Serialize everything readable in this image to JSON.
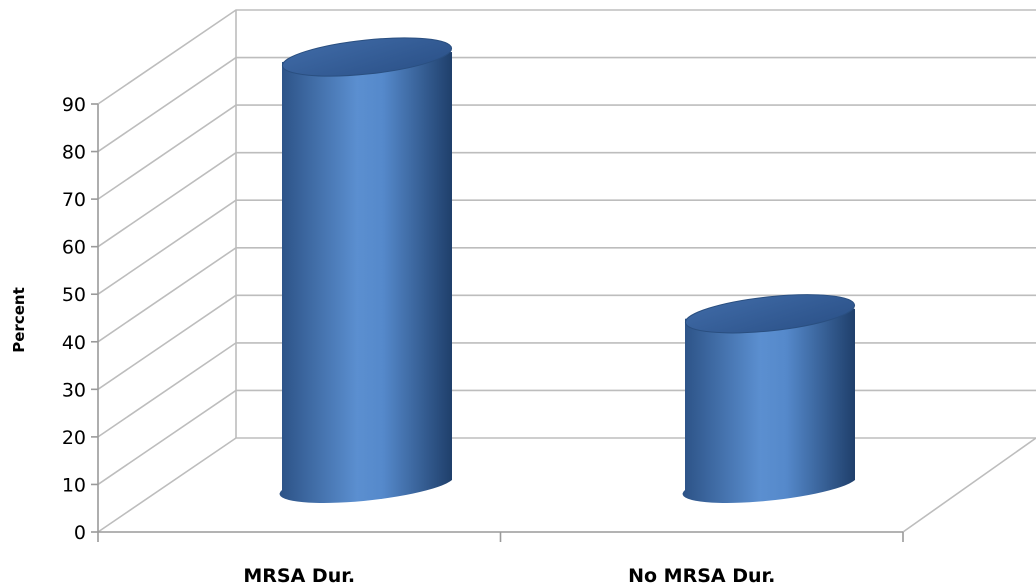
{
  "chart_data": {
    "type": "bar",
    "style": "3d-cylinder",
    "categories": [
      "MRSA Dur.",
      "No MRSA Dur."
    ],
    "series": [
      {
        "values": [
          90,
          36
        ]
      }
    ],
    "ylabel": "Percent",
    "ylim": [
      0,
      90
    ],
    "yticks": [
      0,
      10,
      20,
      30,
      40,
      50,
      60,
      70,
      80,
      90
    ],
    "grid": true,
    "legend": "none",
    "colors": {
      "bar": "#4f81bd",
      "bar_dark": "#2a4f80",
      "bar_light": "#6f9fd8",
      "grid": "#bdbdbd"
    }
  }
}
